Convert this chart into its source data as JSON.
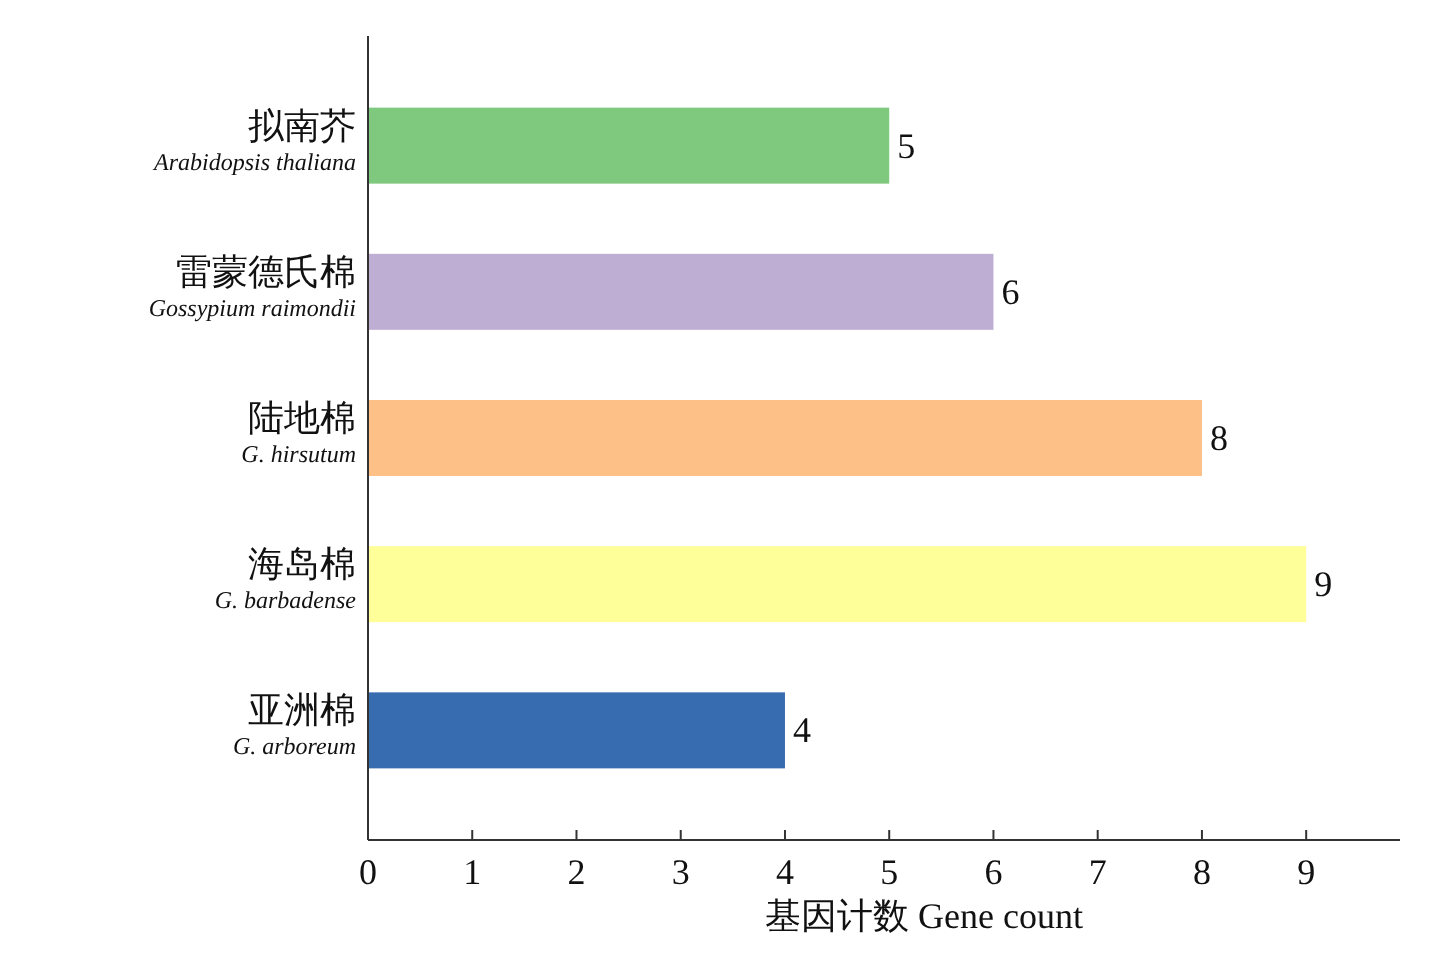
{
  "chart_data": {
    "type": "bar",
    "orientation": "horizontal",
    "xlabel": "基因计数 Gene count",
    "categories": [
      "拟南芥\nArabidopsis thaliana",
      "雷蒙德氏棉\nGossypium raimondii",
      "陆地棉\nG. hirsutum",
      "海岛棉\nG. barbadense",
      "亚洲棉\nG. arboreum"
    ],
    "values": [
      5,
      6,
      8,
      9,
      4
    ],
    "colors": [
      "#7fc97f",
      "#beaed4",
      "#fdc086",
      "#ffff99",
      "#386cb0"
    ],
    "xlim": [
      0,
      9.9
    ],
    "xticks": [
      0,
      1,
      2,
      3,
      4,
      5,
      6,
      7,
      8,
      9
    ],
    "data_labels": true
  }
}
